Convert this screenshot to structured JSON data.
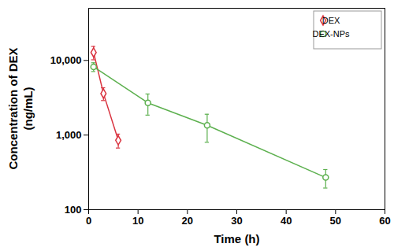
{
  "chart_data": {
    "type": "line",
    "xlabel": "Time (h)",
    "ylabel": "Concentration of DEX (ng/mL)",
    "log": "y",
    "legend": "top-right",
    "xlim": [
      0,
      60
    ],
    "xticks": [
      0,
      10,
      20,
      30,
      40,
      50,
      60
    ],
    "ylim": [
      100,
      50000
    ],
    "yticks": [
      100,
      {
        "value": 1000,
        "label": "1,000"
      },
      {
        "value": 10000,
        "label": "10,000"
      }
    ],
    "series": [
      {
        "name": "DEX",
        "color": "#d9333f",
        "marker": "diamond",
        "x": [
          1,
          3,
          6
        ],
        "values": [
          12800,
          3600,
          850
        ],
        "error": [
          2600,
          700,
          180
        ]
      },
      {
        "name": "DEX-NPs",
        "color": "#5cb04e",
        "marker": "circle",
        "x": [
          1,
          12,
          24,
          48
        ],
        "values": [
          8200,
          2700,
          1350,
          270
        ],
        "error": [
          1100,
          850,
          550,
          75
        ]
      }
    ]
  }
}
